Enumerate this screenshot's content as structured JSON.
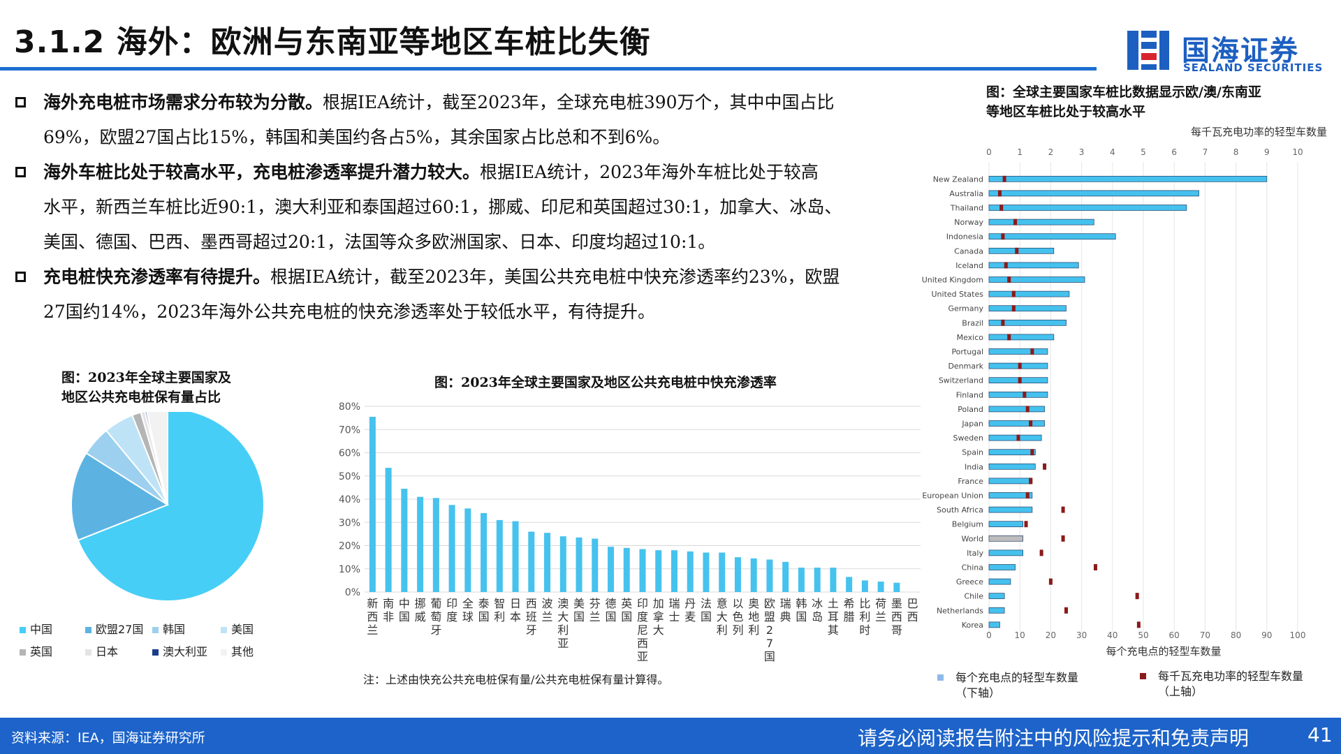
{
  "header": {
    "title": "3.1.2 海外：欧洲与东南亚等地区车桩比失衡",
    "logo_name": "国海证券",
    "logo_en": "SEALAND SECURITIES"
  },
  "bullets": [
    {
      "bold": "海外充电桩市场需求分布较为分散。",
      "line1": "根据IEA统计，截至2023年，全球充电桩390万个，其中中国占比",
      "line2": "69%，欧盟27国占比15%，韩国和美国约各占5%，其余国家占比总和不到6%。"
    },
    {
      "bold": "海外车桩比处于较高水平，充电桩渗透率提升潜力较大。",
      "line1": "根据IEA统计，2023年海外车桩比处于较高",
      "line2": "水平，新西兰车桩比近90:1，澳大利亚和泰国超过60:1，挪威、印尼和英国超过30:1，加拿大、冰岛、",
      "line3": "美国、德国、巴西、墨西哥超过20:1，法国等众多欧洲国家、日本、印度均超过10:1。"
    },
    {
      "bold": "充电桩快充渗透率有待提升。",
      "line1": "根据IEA统计，截至2023年，美国公共充电桩中快充渗透率约23%，欧盟",
      "line2": "27国约14%，2023年海外公共充电桩的快充渗透率处于较低水平，有待提升。"
    }
  ],
  "captions": {
    "pie": [
      "图：2023年全球主要国家及",
      "地区公共充电桩保有量占比"
    ],
    "bar": "图：2023年全球主要国家及地区公共充电桩中快充渗透率",
    "bar_note": "注：上述由快充公共充电桩保有量/公共充电桩保有量计算得。",
    "hbar": [
      "图：全球主要国家车桩比数据显示欧/澳/东南亚",
      "等地区车桩比处于较高水平"
    ]
  },
  "footer": {
    "source": "资料来源：IEA，国海证券研究所",
    "disclaimer": "请务必阅读报告附注中的风险提示和免责声明",
    "page": "41"
  },
  "colors": {
    "pie": [
      "#46cef6",
      "#5cb3e2",
      "#9dd0ef",
      "#bfe3f6",
      "#b5b5b5",
      "#e4e4e4",
      "#1c3c8c",
      "#f2f2f2"
    ],
    "bar": "#46c2ee",
    "hbar": "#45c1ee",
    "world": "#bdbdbd",
    "marker": "#8b1a1a",
    "accent": "#1d63c9"
  },
  "chart_data": [
    {
      "type": "pie",
      "labels": [
        "中国",
        "欧盟27国",
        "韩国",
        "美国",
        "英国",
        "日本",
        "澳大利亚",
        "其他"
      ],
      "values": [
        69,
        15,
        5,
        5,
        1.5,
        0.7,
        0.3,
        3.5
      ]
    },
    {
      "type": "bar",
      "categories": [
        "新西兰",
        "南非",
        "中国",
        "挪威",
        "葡萄牙",
        "印度",
        "全球",
        "泰国",
        "智利",
        "日本",
        "西班牙",
        "波兰",
        "澳大利亚",
        "美国",
        "芬兰",
        "德国",
        "英国",
        "印度尼西亚",
        "加拿大",
        "瑞士",
        "丹麦",
        "法国",
        "意大利",
        "以色列",
        "奥地利",
        "欧盟27国",
        "瑞典",
        "韩国",
        "冰岛",
        "土耳其",
        "希腊",
        "比利时",
        "荷兰",
        "墨西哥",
        "巴西"
      ],
      "values": [
        75.5,
        53.5,
        44.5,
        41,
        40.5,
        37.5,
        36,
        34,
        31,
        30.5,
        26,
        25.5,
        24,
        23.5,
        23,
        19.5,
        19,
        18.5,
        18,
        18,
        17.5,
        17,
        17,
        15,
        14.5,
        14,
        13,
        10.5,
        10.5,
        10.5,
        6.5,
        5,
        4.5,
        4,
        0
      ],
      "y_ticks": [
        "80%",
        "70%",
        "60%",
        "50%",
        "40%",
        "30%",
        "20%",
        "10%",
        "0%"
      ],
      "ylim": [
        0,
        80
      ]
    },
    {
      "type": "bar",
      "orientation": "horizontal",
      "top_axis_label": "每千瓦充电功率的轻型车数量",
      "bottom_axis_label": "每个充电点的轻型车数量",
      "top_ticks": [
        "0",
        "1",
        "2",
        "3",
        "4",
        "5",
        "6",
        "7",
        "8",
        "9",
        "10"
      ],
      "bottom_ticks": [
        "0",
        "10",
        "20",
        "30",
        "40",
        "50",
        "60",
        "70",
        "80",
        "90",
        "100"
      ],
      "categories": [
        "New Zealand",
        "Australia",
        "Thailand",
        "Norway",
        "Indonesia",
        "Canada",
        "Iceland",
        "United Kingdom",
        "United States",
        "Germany",
        "Brazil",
        "Mexico",
        "Portugal",
        "Denmark",
        "Switzerland",
        "Finland",
        "Poland",
        "Japan",
        "Sweden",
        "Spain",
        "India",
        "France",
        "European Union",
        "South Africa",
        "Belgium",
        "World",
        "Italy",
        "China",
        "Greece",
        "Chile",
        "Netherlands",
        "Korea"
      ],
      "series": [
        {
          "name": "每个充电点的轻型车数量（下轴）",
          "values": [
            90,
            68,
            64,
            34,
            41,
            21,
            29,
            31,
            26,
            25,
            25,
            21,
            19,
            19,
            19,
            19,
            18,
            18,
            17,
            15,
            15,
            14,
            14,
            14,
            11,
            11,
            11,
            8.5,
            7,
            5,
            5,
            3.5
          ]
        },
        {
          "name": "每千瓦充电功率的轻型车数量（上轴）",
          "values": [
            0.5,
            0.35,
            0.4,
            0.85,
            0.45,
            0.9,
            0.55,
            0.65,
            0.8,
            0.8,
            0.45,
            0.65,
            1.4,
            1.0,
            1.0,
            1.15,
            1.25,
            1.35,
            0.95,
            1.4,
            1.8,
            1.35,
            1.25,
            2.4,
            1.2,
            2.4,
            1.7,
            3.45,
            2.0,
            4.8,
            2.5,
            4.85
          ]
        }
      ],
      "xlim_bottom": [
        0,
        100
      ],
      "xlim_top": [
        0,
        10
      ]
    }
  ]
}
